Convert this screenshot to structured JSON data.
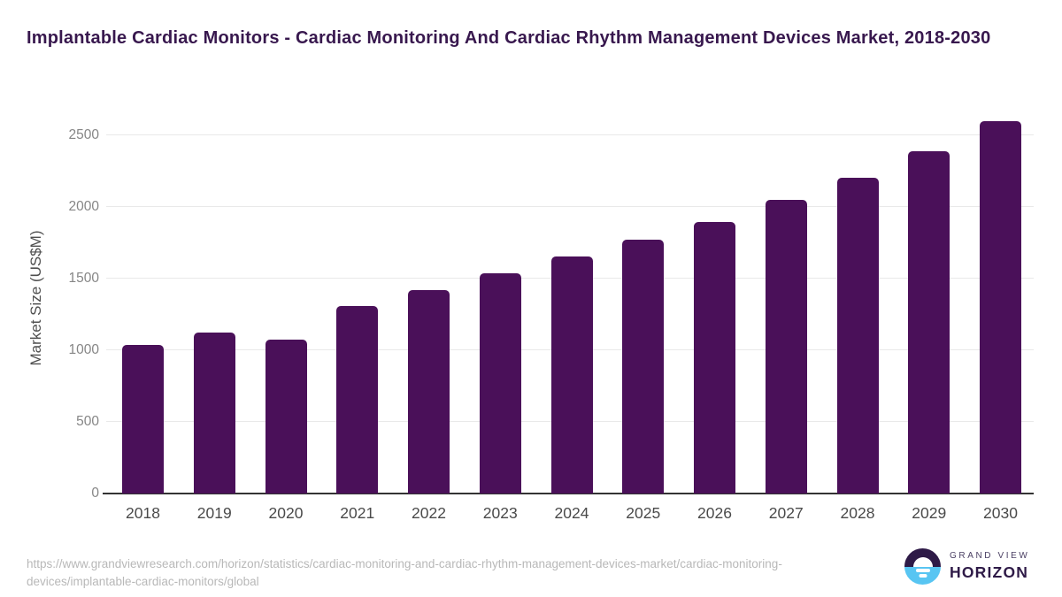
{
  "header": {
    "title": "Implantable Cardiac Monitors - Cardiac Monitoring And Cardiac Rhythm Management Devices Market, 2018-2030"
  },
  "chart_data": {
    "type": "bar",
    "title": "Implantable Cardiac Monitors - Cardiac Monitoring And Cardiac Rhythm Management Devices Market, 2018-2030",
    "categories": [
      "2018",
      "2019",
      "2020",
      "2021",
      "2022",
      "2023",
      "2024",
      "2025",
      "2026",
      "2027",
      "2028",
      "2029",
      "2030"
    ],
    "values": [
      1040,
      1122,
      1073,
      1308,
      1420,
      1540,
      1655,
      1770,
      1898,
      2049,
      2206,
      2391,
      2599
    ],
    "xlabel": "",
    "ylabel": "Market Size (US$M)",
    "ylim": [
      0,
      2625
    ],
    "yticks": [
      0,
      500,
      1000,
      1500,
      2000,
      2500
    ],
    "grid": true,
    "legend": "none",
    "bar_color": "#4a1059"
  },
  "footer": {
    "source_url": "https://www.grandviewresearch.com/horizon/statistics/cardiac-monitoring-and-cardiac-rhythm-management-devices-market/cardiac-monitoring-devices/implantable-cardiac-monitors/global",
    "logo": {
      "line1": "GRAND VIEW",
      "line2": "HORIZON"
    }
  },
  "colors": {
    "title": "#38184e",
    "bar": "#4a1059",
    "gridline": "#e9e9e9",
    "axis_line": "#333333",
    "y_tick_label": "#868686",
    "x_tick_label": "#4a4a4a",
    "y_axis_title": "#4f4f4f",
    "source_url": "#b8b8b8",
    "logo_dark_purple": "#2e1a47",
    "logo_light_blue": "#58c5f2"
  }
}
